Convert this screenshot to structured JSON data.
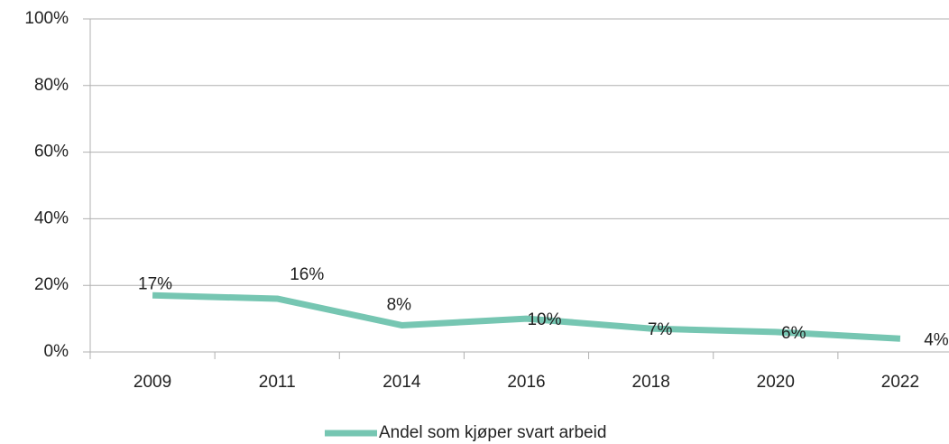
{
  "chart_data": {
    "type": "line",
    "categories": [
      "2009",
      "2011",
      "2014",
      "2016",
      "2018",
      "2020",
      "2022"
    ],
    "series": [
      {
        "name": "Andel som kjøper svart arbeid",
        "color": "#76c6b2",
        "values": [
          17,
          16,
          8,
          10,
          7,
          6,
          4
        ],
        "value_labels": [
          "17%",
          "16%",
          "8%",
          "10%",
          "7%",
          "6%",
          "4%"
        ]
      }
    ],
    "ylim": [
      0,
      100
    ],
    "yticks": [
      {
        "value": 0,
        "label": "0%"
      },
      {
        "value": 20,
        "label": "20%"
      },
      {
        "value": 40,
        "label": "40%"
      },
      {
        "value": 60,
        "label": "60%"
      },
      {
        "value": 80,
        "label": "80%"
      },
      {
        "value": 100,
        "label": "100%"
      }
    ],
    "grid": true,
    "legend": "bottom"
  }
}
